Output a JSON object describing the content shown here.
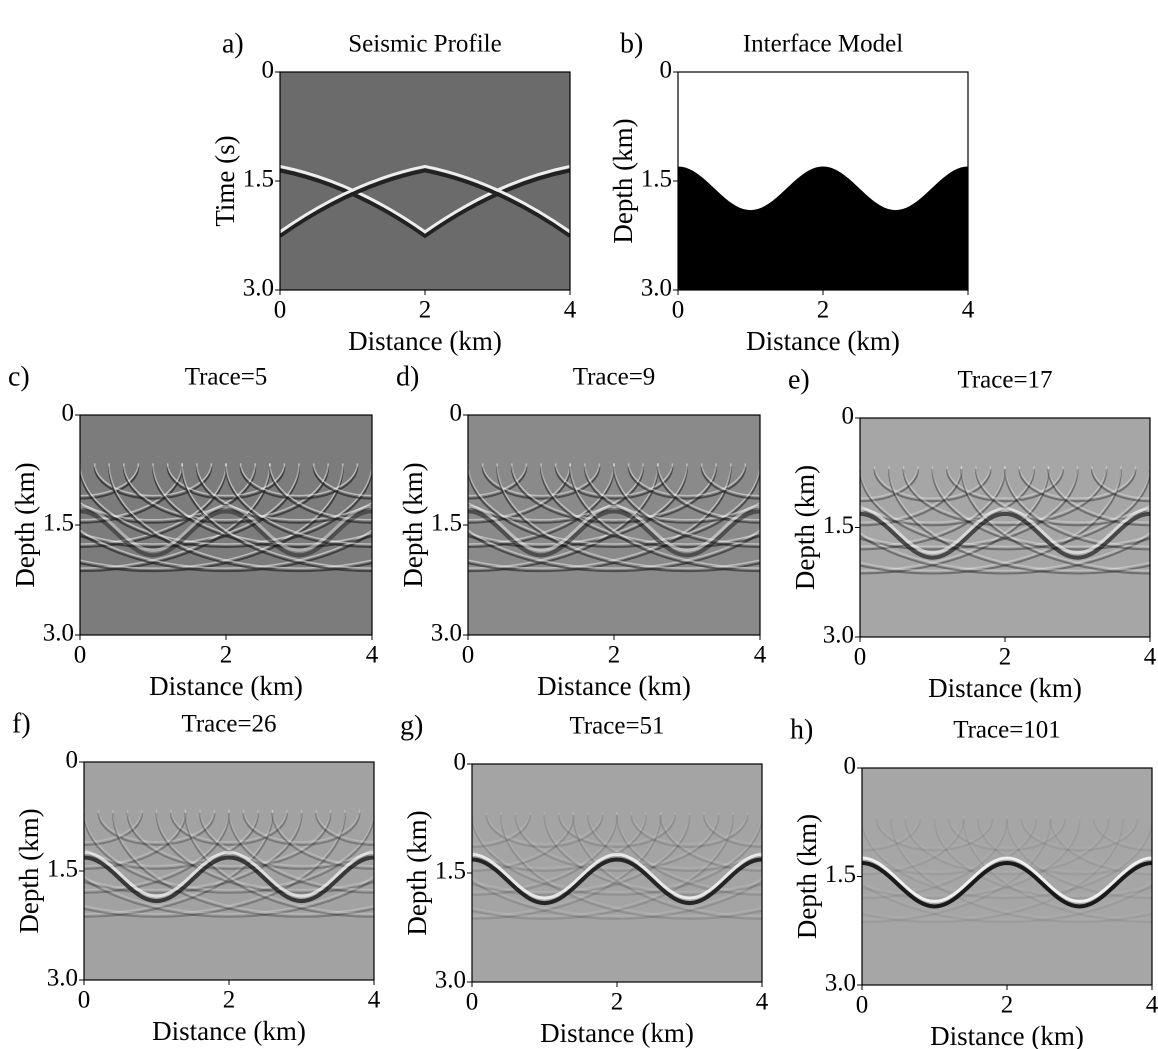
{
  "chart_data": [
    {
      "type": "image",
      "panel": "a)",
      "title": "Seismic Profile",
      "xlabel": "Distance (km)",
      "ylabel": "Time (s)",
      "xlim": [
        0,
        4
      ],
      "ylim": [
        0,
        3
      ],
      "y_inverted": true,
      "xticks": [
        0,
        2,
        4
      ],
      "yticks": [
        0,
        1.5,
        {
          "value": 3,
          "label": "3.0"
        }
      ]
    },
    {
      "type": "image",
      "panel": "b)",
      "title": "Interface Model",
      "xlabel": "Distance (km)",
      "ylabel": "Depth (km)",
      "xlim": [
        0,
        4
      ],
      "ylim": [
        0,
        3
      ],
      "y_inverted": true,
      "xticks": [
        0,
        2,
        4
      ],
      "yticks": [
        0,
        1.5,
        {
          "value": 3,
          "label": "3.0"
        }
      ]
    },
    {
      "type": "image",
      "panel": "c)",
      "title": "Trace=5",
      "xlabel": "Distance (km)",
      "ylabel": "Depth (km)",
      "xlim": [
        0,
        4
      ],
      "ylim": [
        0,
        3
      ],
      "y_inverted": true,
      "xticks": [
        0,
        2,
        4
      ],
      "yticks": [
        0,
        1.5,
        {
          "value": 3,
          "label": "3.0"
        }
      ]
    },
    {
      "type": "image",
      "panel": "d)",
      "title": "Trace=9",
      "xlabel": "Distance (km)",
      "ylabel": "Depth (km)",
      "xlim": [
        0,
        4
      ],
      "ylim": [
        0,
        3
      ],
      "y_inverted": true,
      "xticks": [
        0,
        2,
        4
      ],
      "yticks": [
        0,
        1.5,
        {
          "value": 3,
          "label": "3.0"
        }
      ]
    },
    {
      "type": "image",
      "panel": "e)",
      "title": "Trace=17",
      "xlabel": "Distance (km)",
      "ylabel": "Depth (km)",
      "xlim": [
        0,
        4
      ],
      "ylim": [
        0,
        3
      ],
      "y_inverted": true,
      "xticks": [
        0,
        2,
        4
      ],
      "yticks": [
        0,
        1.5,
        {
          "value": 3,
          "label": "3.0"
        }
      ]
    },
    {
      "type": "image",
      "panel": "f)",
      "title": "Trace=26",
      "xlabel": "Distance (km)",
      "ylabel": "Depth (km)",
      "xlim": [
        0,
        4
      ],
      "ylim": [
        0,
        3
      ],
      "y_inverted": true,
      "xticks": [
        0,
        2,
        4
      ],
      "yticks": [
        0,
        1.5,
        {
          "value": 3,
          "label": "3.0"
        }
      ]
    },
    {
      "type": "image",
      "panel": "g)",
      "title": "Trace=51",
      "xlabel": "Distance (km)",
      "ylabel": "Depth (km)",
      "xlim": [
        0,
        4
      ],
      "ylim": [
        0,
        3
      ],
      "y_inverted": true,
      "xticks": [
        0,
        2,
        4
      ],
      "yticks": [
        0,
        1.5,
        {
          "value": 3,
          "label": "3.0"
        }
      ]
    },
    {
      "type": "image",
      "panel": "h)",
      "title": "Trace=101",
      "xlabel": "Distance (km)",
      "ylabel": "Depth (km)",
      "xlim": [
        0,
        4
      ],
      "ylim": [
        0,
        3
      ],
      "y_inverted": true,
      "xticks": [
        0,
        2,
        4
      ],
      "yticks": [
        0,
        1.5,
        {
          "value": 3,
          "label": "3.0"
        }
      ]
    }
  ]
}
